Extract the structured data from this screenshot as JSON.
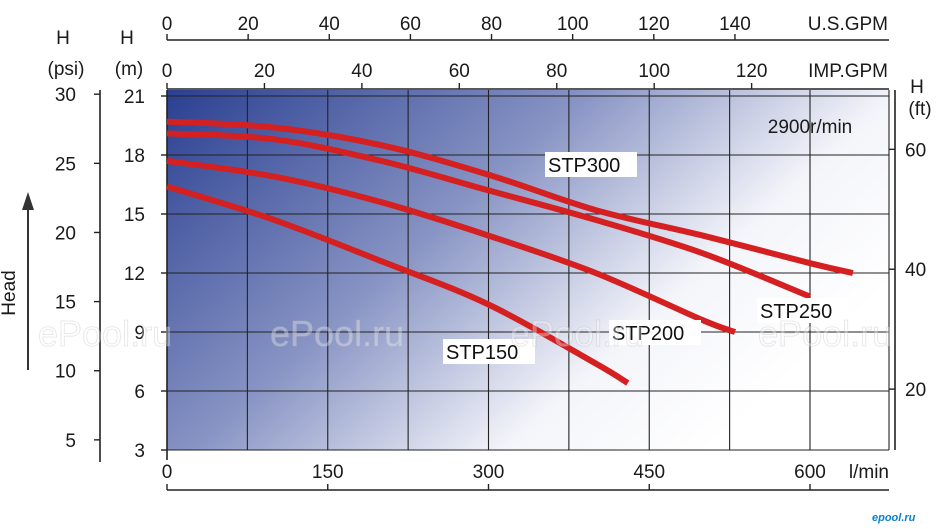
{
  "chart_data": {
    "type": "line",
    "title": "",
    "speed_label": "2900r/min",
    "x": {
      "label": "l/min",
      "range": [
        0,
        680
      ],
      "ticks": [
        0,
        150,
        300,
        450,
        600
      ]
    },
    "x_secondary_top": [
      {
        "unit": "U.S.GPM",
        "factor": 3.78541,
        "ticks": [
          0,
          20,
          40,
          60,
          80,
          100,
          120,
          140
        ]
      },
      {
        "unit": "IMP.GPM",
        "factor": 4.54609,
        "ticks": [
          0,
          20,
          40,
          60,
          80,
          100,
          120
        ]
      }
    ],
    "y": {
      "label_top": "H",
      "unit": "(m)",
      "range": [
        3,
        21
      ],
      "ticks": [
        3,
        6,
        9,
        12,
        15,
        18,
        21
      ]
    },
    "y_psi": {
      "label_top": "H",
      "unit": "(psi)",
      "ticks": [
        5,
        10,
        15,
        20,
        25,
        30
      ]
    },
    "y_ft": {
      "label_top": "H",
      "unit": "(ft)",
      "ticks": [
        20,
        40,
        60
      ]
    },
    "side_label": "Head",
    "grid": true,
    "series": [
      {
        "name": "STP300",
        "x": [
          0,
          100,
          200,
          300,
          400,
          500,
          600,
          640
        ],
        "y": [
          19.7,
          19.4,
          18.5,
          17.0,
          15.2,
          13.9,
          12.5,
          12.0
        ]
      },
      {
        "name": "STP250",
        "x": [
          0,
          100,
          200,
          300,
          400,
          500,
          600
        ],
        "y": [
          19.1,
          18.8,
          17.7,
          16.2,
          14.7,
          13.0,
          10.8
        ]
      },
      {
        "name": "STP200",
        "x": [
          0,
          100,
          200,
          300,
          400,
          500,
          530
        ],
        "y": [
          17.7,
          16.9,
          15.6,
          13.9,
          12.0,
          9.6,
          9.0
        ]
      },
      {
        "name": "STP150",
        "x": [
          0,
          100,
          200,
          300,
          400,
          430
        ],
        "y": [
          16.4,
          14.7,
          12.6,
          10.4,
          7.4,
          6.4
        ]
      }
    ]
  },
  "watermark": "ePool.ru",
  "brand": "epool.ru"
}
